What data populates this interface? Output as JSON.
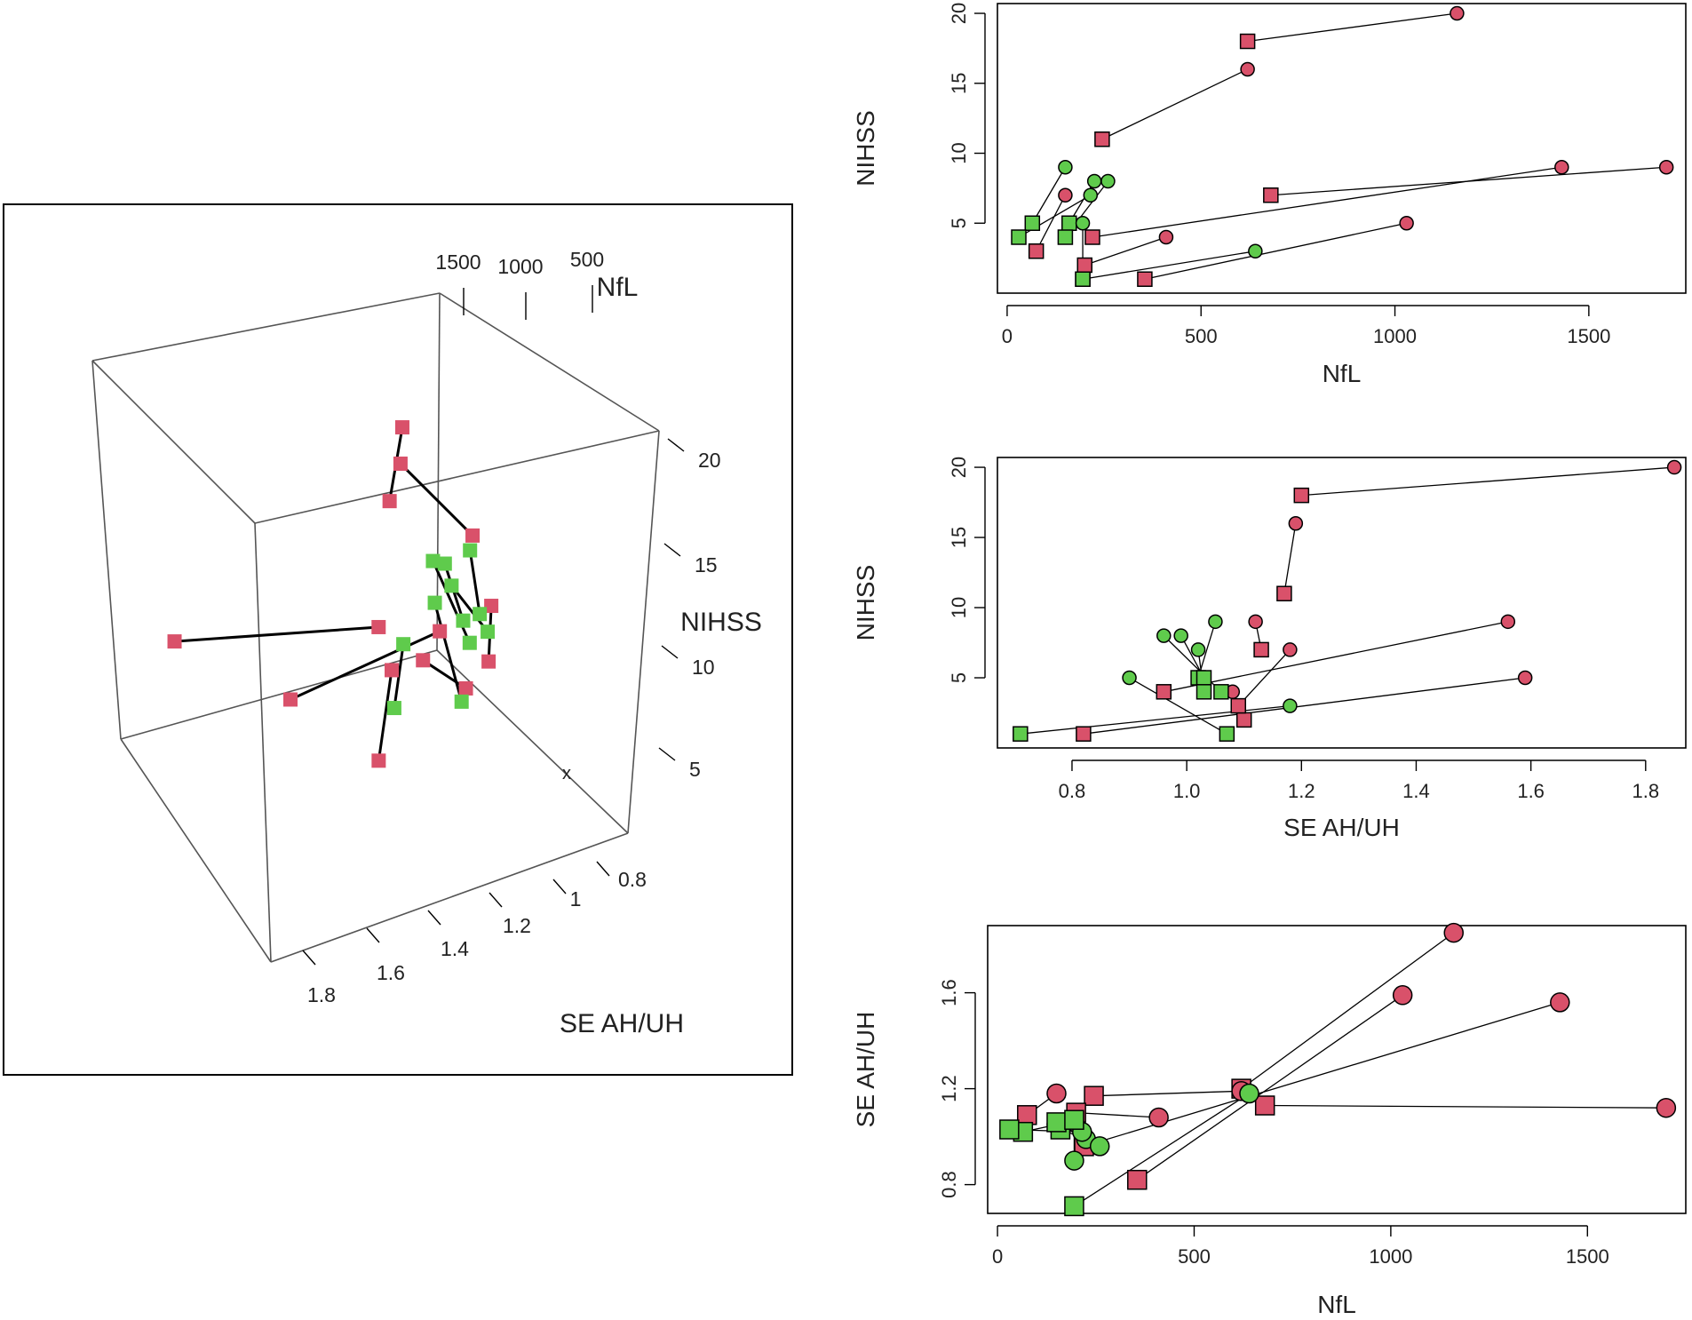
{
  "colors": {
    "red": "#d9516a",
    "green": "#5fcb4c",
    "stroke": "#000000",
    "axis": "#444444"
  },
  "chart_data": [
    {
      "id": "scatter3d",
      "type": "scatter",
      "kind": "3d",
      "axes": {
        "x": "NfL",
        "y": "NIHSS",
        "z": "SE AH/UH"
      },
      "x_ticks": [
        "1500",
        "1000",
        "500"
      ],
      "y_ticks": [
        "20",
        "15",
        "10",
        "5"
      ],
      "z_ticks": [
        "0.8",
        "1",
        "1.2",
        "1.4",
        "1.6",
        "1.8"
      ],
      "center_mark": "x",
      "pairs": [
        {
          "a": [
            1160,
            20,
            1.85
          ],
          "b": [
            620,
            18,
            1.2
          ],
          "color": "red"
        },
        {
          "a": [
            620,
            16,
            1.19
          ],
          "b": [
            245,
            11,
            1.17
          ],
          "color": "red"
        },
        {
          "a": [
            1030,
            5,
            1.59
          ],
          "b": [
            355,
            1,
            0.82
          ],
          "color": "red"
        },
        {
          "a": [
            1430,
            9,
            1.56
          ],
          "b": [
            220,
            4,
            0.96
          ],
          "color": "red"
        },
        {
          "a": [
            1700,
            9,
            1.12
          ],
          "b": [
            680,
            7,
            1.13
          ],
          "color": "red"
        },
        {
          "a": [
            410,
            4,
            1.08
          ],
          "b": [
            200,
            2,
            1.1
          ],
          "color": "red"
        },
        {
          "a": [
            150,
            7,
            1.18
          ],
          "b": [
            75,
            3,
            1.09
          ],
          "color": "red"
        },
        {
          "a": [
            640,
            3,
            1.18
          ],
          "b": [
            195,
            1,
            0.71
          ],
          "color": "green"
        },
        {
          "a": [
            150,
            9,
            1.05
          ],
          "b": [
            65,
            5,
            1.02
          ],
          "color": "green"
        },
        {
          "a": [
            225,
            8,
            0.99
          ],
          "b": [
            160,
            5,
            1.03
          ],
          "color": "green"
        },
        {
          "a": [
            260,
            8,
            0.96
          ],
          "b": [
            150,
            4,
            1.06
          ],
          "color": "green"
        },
        {
          "a": [
            215,
            7,
            1.02
          ],
          "b": [
            30,
            4,
            1.03
          ],
          "color": "green"
        },
        {
          "a": [
            195,
            5,
            0.9
          ],
          "b": [
            195,
            1,
            1.07
          ],
          "color": "green"
        }
      ]
    },
    {
      "id": "nfl_nihss",
      "type": "scatter",
      "xlabel": "NfL",
      "ylabel": "NIHSS",
      "xlim": [
        -25,
        1750
      ],
      "ylim": [
        0,
        20.7
      ],
      "x_ticks": [
        0,
        500,
        1000,
        1500
      ],
      "y_ticks": [
        5,
        10,
        15,
        20
      ],
      "pairs": [
        {
          "a": [
            1160,
            20
          ],
          "b": [
            620,
            18
          ],
          "color": "red"
        },
        {
          "a": [
            620,
            16
          ],
          "b": [
            245,
            11
          ],
          "color": "red"
        },
        {
          "a": [
            1030,
            5
          ],
          "b": [
            355,
            1
          ],
          "color": "red"
        },
        {
          "a": [
            1430,
            9
          ],
          "b": [
            220,
            4
          ],
          "color": "red"
        },
        {
          "a": [
            1700,
            9
          ],
          "b": [
            680,
            7
          ],
          "color": "red"
        },
        {
          "a": [
            410,
            4
          ],
          "b": [
            200,
            2
          ],
          "color": "red"
        },
        {
          "a": [
            150,
            7
          ],
          "b": [
            75,
            3
          ],
          "color": "red"
        },
        {
          "a": [
            640,
            3
          ],
          "b": [
            195,
            1
          ],
          "color": "green"
        },
        {
          "a": [
            150,
            9
          ],
          "b": [
            65,
            5
          ],
          "color": "green"
        },
        {
          "a": [
            225,
            8
          ],
          "b": [
            160,
            5
          ],
          "color": "green"
        },
        {
          "a": [
            260,
            8
          ],
          "b": [
            150,
            4
          ],
          "color": "green"
        },
        {
          "a": [
            215,
            7
          ],
          "b": [
            30,
            4
          ],
          "color": "green"
        },
        {
          "a": [
            195,
            5
          ],
          "b": [
            195,
            1
          ],
          "color": "green"
        }
      ]
    },
    {
      "id": "se_nihss",
      "type": "scatter",
      "xlabel": "SE AH/UH",
      "ylabel": "NIHSS",
      "xlim": [
        0.67,
        1.87
      ],
      "ylim": [
        0,
        20.7
      ],
      "x_ticks": [
        0.8,
        1.0,
        1.2,
        1.4,
        1.6,
        1.8
      ],
      "x_tick_labels": [
        "0.8",
        "1.0",
        "1.2",
        "1.4",
        "1.6",
        "1.8"
      ],
      "y_ticks": [
        5,
        10,
        15,
        20
      ],
      "pairs": [
        {
          "a": [
            1.85,
            20
          ],
          "b": [
            1.2,
            18
          ],
          "color": "red"
        },
        {
          "a": [
            1.19,
            16
          ],
          "b": [
            1.17,
            11
          ],
          "color": "red"
        },
        {
          "a": [
            1.59,
            5
          ],
          "b": [
            0.82,
            1
          ],
          "color": "red"
        },
        {
          "a": [
            1.56,
            9
          ],
          "b": [
            0.96,
            4
          ],
          "color": "red"
        },
        {
          "a": [
            1.12,
            9
          ],
          "b": [
            1.13,
            7
          ],
          "color": "red"
        },
        {
          "a": [
            1.08,
            4
          ],
          "b": [
            1.1,
            2
          ],
          "color": "red"
        },
        {
          "a": [
            1.18,
            7
          ],
          "b": [
            1.09,
            3
          ],
          "color": "red"
        },
        {
          "a": [
            1.18,
            3
          ],
          "b": [
            0.71,
            1
          ],
          "color": "green"
        },
        {
          "a": [
            1.05,
            9
          ],
          "b": [
            1.02,
            5
          ],
          "color": "green"
        },
        {
          "a": [
            0.99,
            8
          ],
          "b": [
            1.03,
            5
          ],
          "color": "green"
        },
        {
          "a": [
            0.96,
            8
          ],
          "b": [
            1.06,
            4
          ],
          "color": "green"
        },
        {
          "a": [
            1.02,
            7
          ],
          "b": [
            1.03,
            4
          ],
          "color": "green"
        },
        {
          "a": [
            0.9,
            5
          ],
          "b": [
            1.07,
            1
          ],
          "color": "green"
        }
      ]
    },
    {
      "id": "nfl_se",
      "type": "scatter",
      "xlabel": "NfL",
      "ylabel": "SE AH/UH",
      "xlim": [
        -25,
        1750
      ],
      "ylim": [
        0.68,
        1.88
      ],
      "x_ticks": [
        0,
        500,
        1000,
        1500
      ],
      "y_ticks": [
        0.8,
        1.2,
        1.6
      ],
      "y_tick_labels": [
        "0.8",
        "1.2",
        "1.6"
      ],
      "pairs": [
        {
          "a": [
            1160,
            1.85
          ],
          "b": [
            620,
            1.2
          ],
          "color": "red"
        },
        {
          "a": [
            620,
            1.19
          ],
          "b": [
            245,
            1.17
          ],
          "color": "red"
        },
        {
          "a": [
            1030,
            1.59
          ],
          "b": [
            355,
            0.82
          ],
          "color": "red"
        },
        {
          "a": [
            1430,
            1.56
          ],
          "b": [
            220,
            0.96
          ],
          "color": "red"
        },
        {
          "a": [
            1700,
            1.12
          ],
          "b": [
            680,
            1.13
          ],
          "color": "red"
        },
        {
          "a": [
            410,
            1.08
          ],
          "b": [
            200,
            1.1
          ],
          "color": "red"
        },
        {
          "a": [
            150,
            1.18
          ],
          "b": [
            75,
            1.09
          ],
          "color": "red"
        },
        {
          "a": [
            640,
            1.18
          ],
          "b": [
            195,
            0.71
          ],
          "color": "green"
        },
        {
          "a": [
            150,
            1.05
          ],
          "b": [
            65,
            1.02
          ],
          "color": "green"
        },
        {
          "a": [
            225,
            0.99
          ],
          "b": [
            160,
            1.03
          ],
          "color": "green"
        },
        {
          "a": [
            260,
            0.96
          ],
          "b": [
            150,
            1.06
          ],
          "color": "green"
        },
        {
          "a": [
            215,
            1.02
          ],
          "b": [
            30,
            1.03
          ],
          "color": "green"
        },
        {
          "a": [
            195,
            0.9
          ],
          "b": [
            195,
            1.07
          ],
          "color": "green"
        }
      ]
    }
  ]
}
